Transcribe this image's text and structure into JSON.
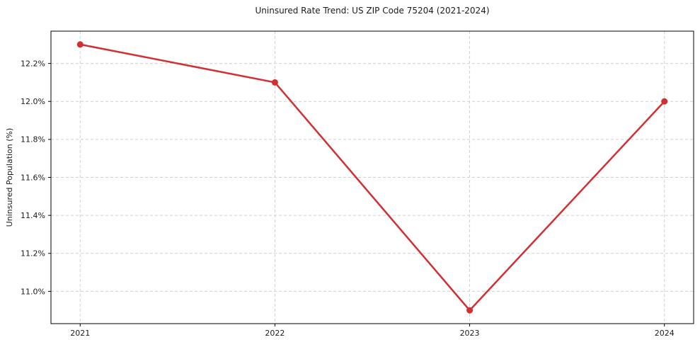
{
  "chart_data": {
    "type": "line",
    "title": "Uninsured Rate Trend: US ZIP Code 75204 (2021-2024)",
    "xlabel": "",
    "ylabel": "Uninsured Population (%)",
    "x": [
      2021,
      2022,
      2023,
      2024
    ],
    "x_tick_labels": [
      "2021",
      "2022",
      "2023",
      "2024"
    ],
    "series": [
      {
        "name": "Uninsured Population (%)",
        "values": [
          12.3,
          12.1,
          10.9,
          12.0
        ]
      }
    ],
    "y_tick_values": [
      11.0,
      11.2,
      11.4,
      11.6,
      11.8,
      12.0,
      12.2
    ],
    "y_tick_labels": [
      "11.0%",
      "11.2%",
      "11.4%",
      "11.6%",
      "11.8%",
      "12.0%",
      "12.2%"
    ],
    "xlim": [
      2020.85,
      2024.15
    ],
    "ylim": [
      10.83,
      12.37
    ],
    "grid": true,
    "grid_style": "dashed",
    "legend": "none",
    "colors": {
      "line": "#d32f33",
      "marker": "#d32f33",
      "grid": "#cfcfcf",
      "axis": "#000000",
      "text": "#1a1a1a"
    }
  }
}
